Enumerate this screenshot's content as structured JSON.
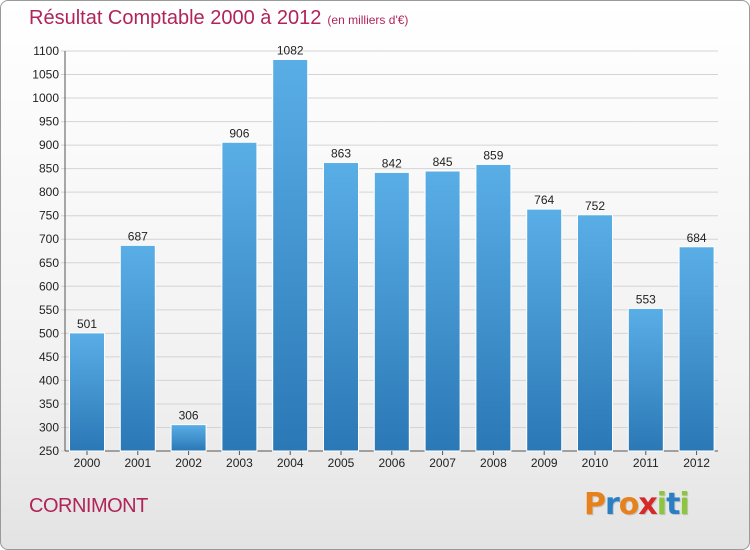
{
  "title": "Résultat Comptable 2000 à 2012",
  "subtitle": "(en milliers d'€)",
  "commune": "CORNIMONT",
  "logo": {
    "letters": [
      "P",
      "r",
      "o",
      "x",
      "i",
      "t",
      "i"
    ]
  },
  "colors": {
    "title": "#b0245a",
    "bar_top": "#5aaee6",
    "bar_bottom": "#2a78b6",
    "logo": [
      "#e6821e",
      "#2a7fc4",
      "#e6821e",
      "#d62a2a",
      "#8cc63f",
      "#2a7fc4",
      "#8cc63f"
    ]
  },
  "chart_data": {
    "type": "bar",
    "title": "Résultat Comptable 2000 à 2012",
    "subtitle": "(en milliers d'€)",
    "xlabel": "",
    "ylabel": "",
    "categories": [
      "2000",
      "2001",
      "2002",
      "2003",
      "2004",
      "2005",
      "2006",
      "2007",
      "2008",
      "2009",
      "2010",
      "2011",
      "2012"
    ],
    "values": [
      501,
      687,
      306,
      906,
      1082,
      863,
      842,
      845,
      859,
      764,
      752,
      553,
      684
    ],
    "ylim": [
      250,
      1100
    ],
    "yticks": [
      250,
      300,
      350,
      400,
      450,
      500,
      550,
      600,
      650,
      700,
      750,
      800,
      850,
      900,
      950,
      1000,
      1050,
      1100
    ],
    "grid": true
  }
}
